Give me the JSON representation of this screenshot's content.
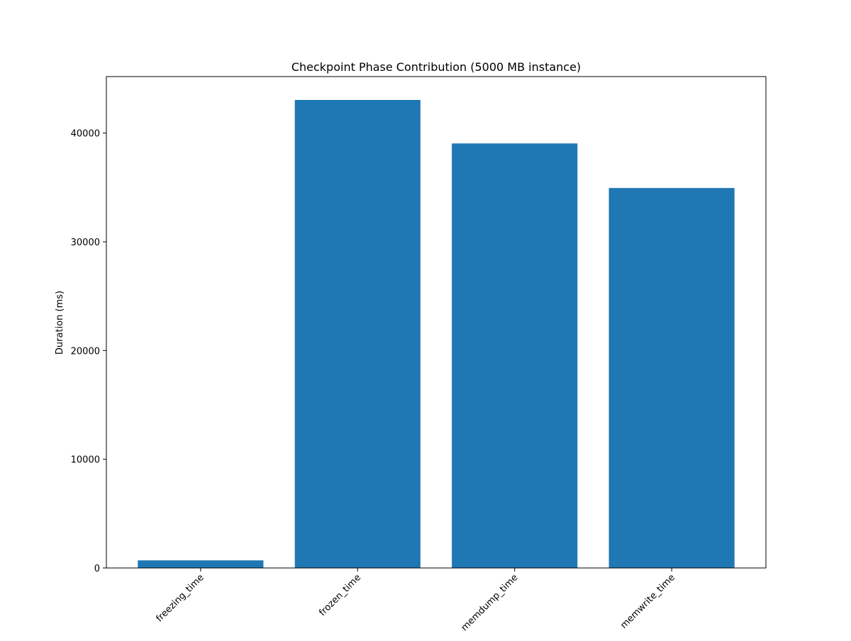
{
  "chart_data": {
    "type": "bar",
    "title": "Checkpoint Phase Contribution (5000 MB instance)",
    "xlabel": "",
    "ylabel": "Duration (ms)",
    "categories": [
      "freezing_time",
      "frozen_time",
      "memdump_time",
      "memwrite_time"
    ],
    "values": [
      700,
      43050,
      39050,
      34950
    ],
    "ylim": [
      0,
      45200
    ],
    "yticks": [
      0,
      10000,
      20000,
      30000,
      40000
    ],
    "ytick_labels": [
      "0",
      "10000",
      "20000",
      "30000",
      "40000"
    ],
    "bar_color": "#1f77b4",
    "grid": false,
    "legend": "none"
  }
}
